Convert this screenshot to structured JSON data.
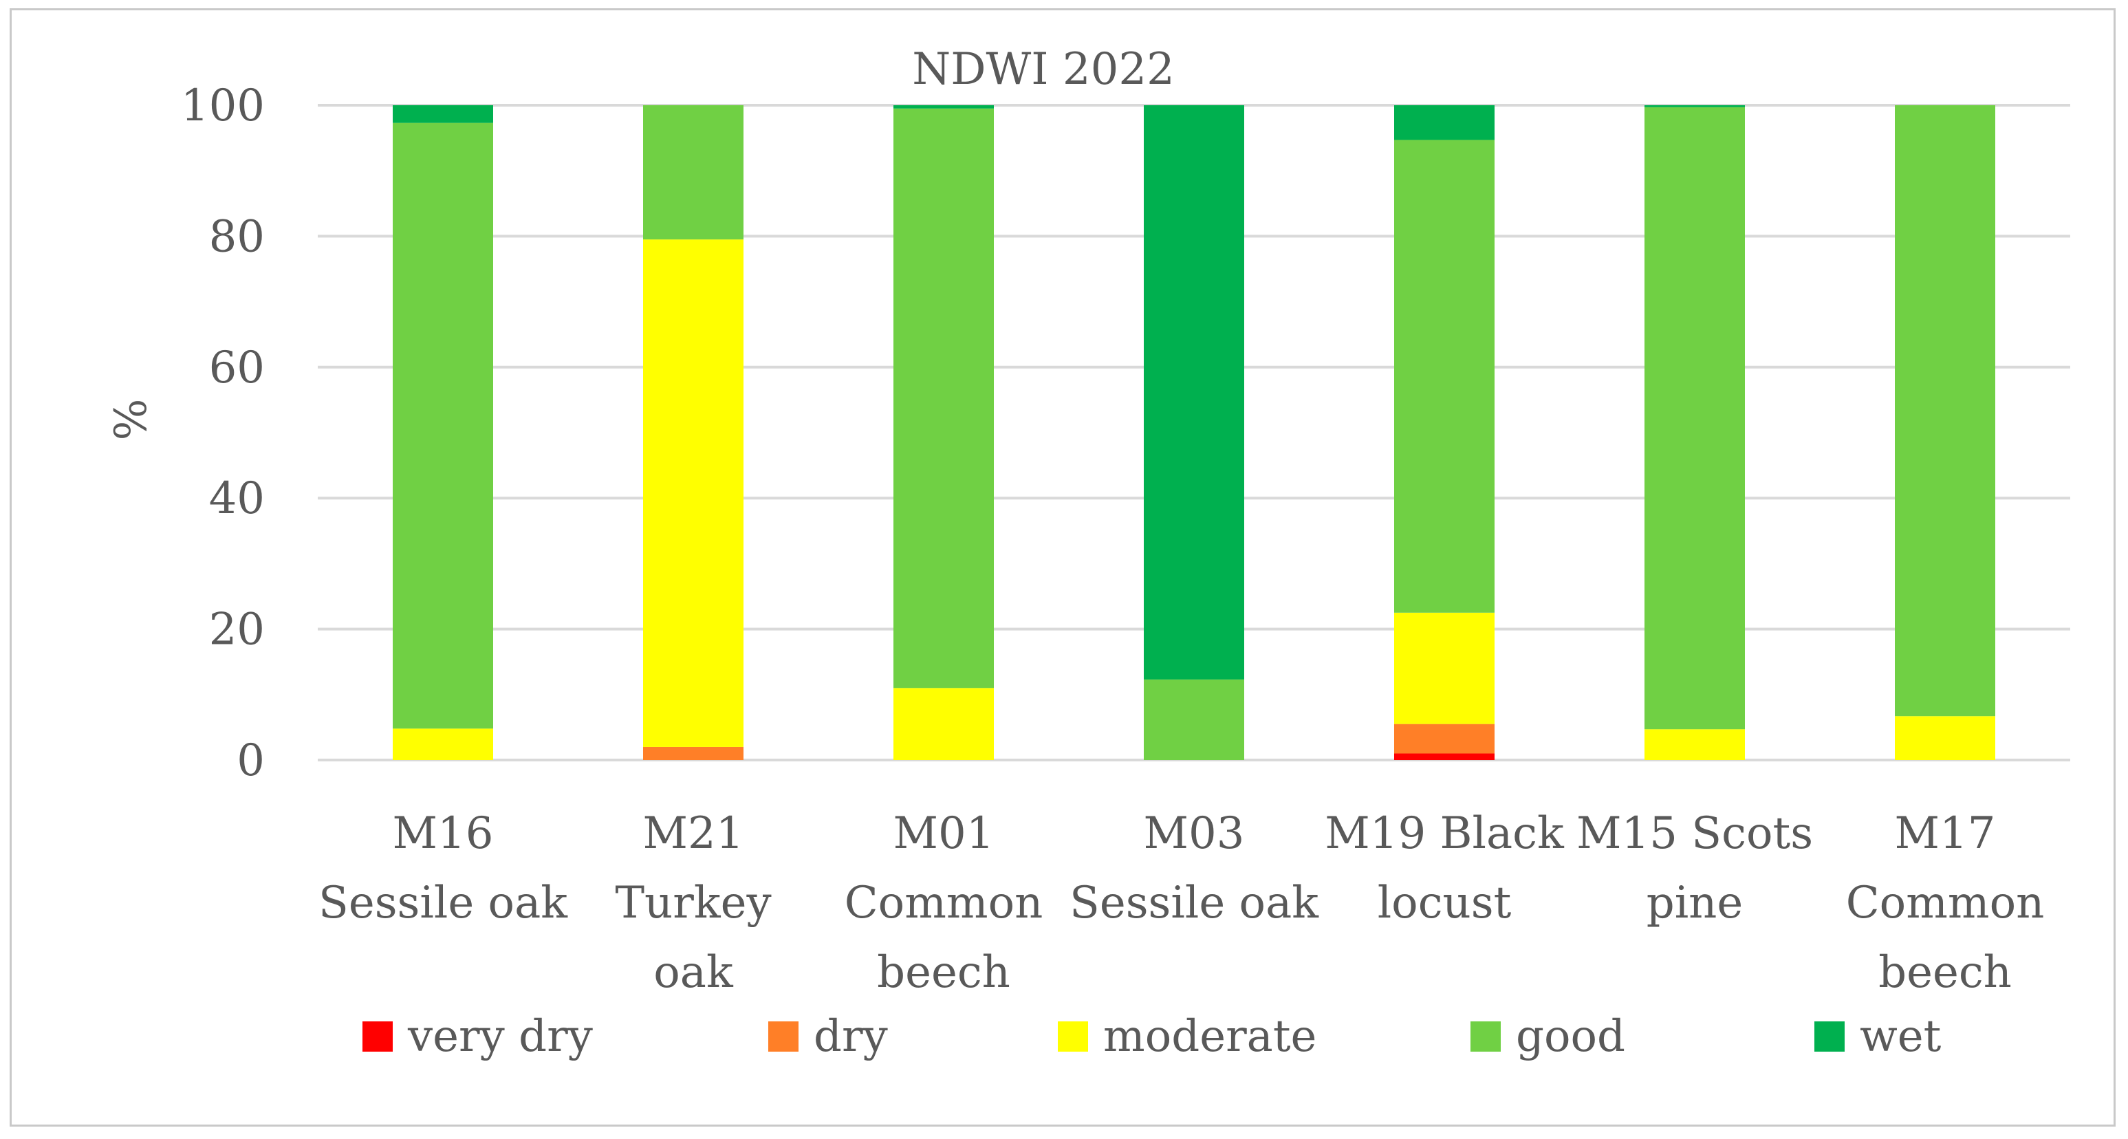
{
  "chart_data": {
    "type": "bar",
    "stacked": true,
    "title": "NDWI 2022",
    "xlabel": "",
    "ylabel": "%",
    "ylim": [
      0,
      100
    ],
    "yticks": [
      0,
      20,
      40,
      60,
      80,
      100
    ],
    "grid": true,
    "legend_position": "bottom",
    "categories": [
      [
        "M16",
        "Sessile oak"
      ],
      [
        "M21",
        "Turkey",
        "oak"
      ],
      [
        "M01",
        "Common",
        "beech"
      ],
      [
        "M03",
        "Sessile oak"
      ],
      [
        "M19 Black",
        "locust"
      ],
      [
        "M15 Scots",
        "pine"
      ],
      [
        "M17",
        "Common",
        "beech"
      ]
    ],
    "series": [
      {
        "name": "very dry",
        "color": "#ff0000",
        "values": [
          0,
          0,
          0,
          0,
          1,
          0,
          0
        ]
      },
      {
        "name": "dry",
        "color": "#ff7f27",
        "values": [
          0,
          2,
          0,
          0,
          4.5,
          0,
          0
        ]
      },
      {
        "name": "moderate",
        "color": "#ffff00",
        "values": [
          4.8,
          77.5,
          11,
          0,
          17,
          4.7,
          6.7
        ]
      },
      {
        "name": "good",
        "color": "#70d044",
        "values": [
          92.5,
          20.5,
          88.5,
          12.3,
          72.2,
          95,
          93.3
        ]
      },
      {
        "name": "wet",
        "color": "#00b04f",
        "values": [
          2.7,
          0,
          0.5,
          87.7,
          5.3,
          0.3,
          0
        ]
      }
    ]
  }
}
